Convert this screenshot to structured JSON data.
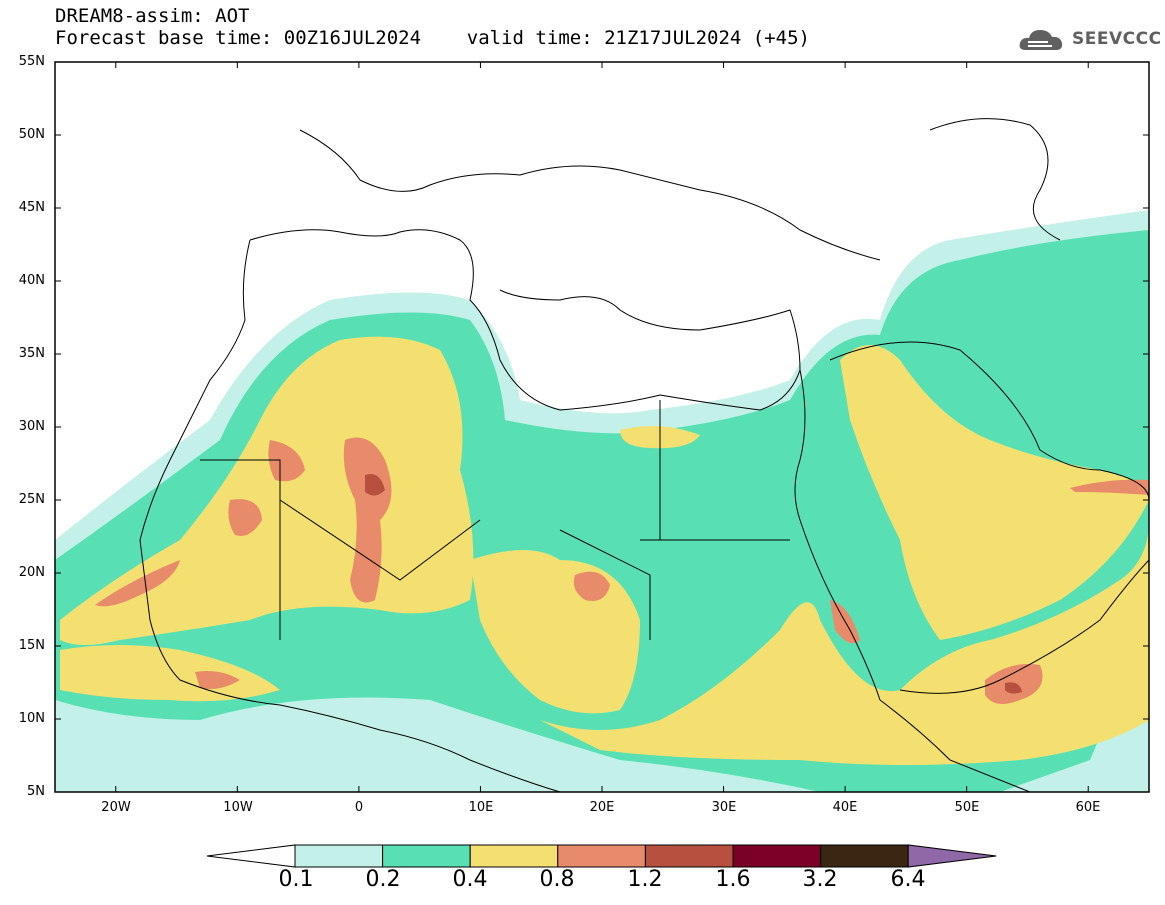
{
  "header": {
    "title_line1": "DREAM8-assim: AOT",
    "title_line2": "Forecast base time: 00Z16JUL2024    valid time: 21Z17JUL2024 (+45)"
  },
  "logo": {
    "text": "SEEVCCC",
    "icon": "cloud-icon"
  },
  "map": {
    "lon_range": [
      -25,
      65
    ],
    "lat_range": [
      5,
      55
    ],
    "lat_ticks": [
      "55N",
      "50N",
      "45N",
      "40N",
      "35N",
      "30N",
      "25N",
      "20N",
      "15N",
      "10N",
      "5N"
    ],
    "lon_ticks": [
      "20W",
      "10W",
      "0",
      "10E",
      "20E",
      "30E",
      "40E",
      "50E",
      "60E"
    ]
  },
  "colorbar": {
    "labels": [
      "0.1",
      "0.2",
      "0.4",
      "0.8",
      "1.2",
      "1.6",
      "3.2",
      "6.4"
    ],
    "colors": [
      "#ffffff",
      "#c3f0e8",
      "#58e0b4",
      "#f4e070",
      "#e88b6a",
      "#b85040",
      "#7b0027",
      "#3a2612",
      "#9068a8"
    ]
  }
}
